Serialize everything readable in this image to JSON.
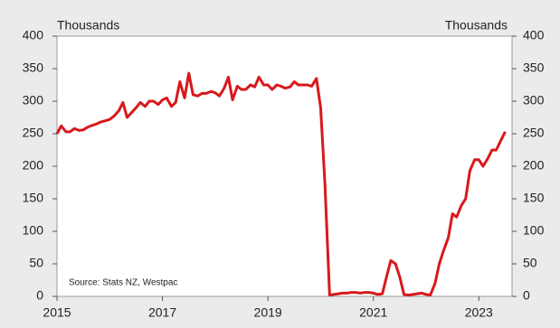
{
  "chart_data": {
    "type": "line",
    "y_label": "Thousands",
    "y2_label": "Thousands",
    "annotation": "Source: Stats NZ, Westpac",
    "color": "#d7191c",
    "x": [
      2015,
      2015.08,
      2015.17,
      2015.25,
      2015.33,
      2015.42,
      2015.5,
      2015.58,
      2015.67,
      2015.75,
      2015.83,
      2015.92,
      2016,
      2016.08,
      2016.17,
      2016.25,
      2016.33,
      2016.42,
      2016.5,
      2016.58,
      2016.67,
      2016.75,
      2016.83,
      2016.92,
      2017,
      2017.08,
      2017.17,
      2017.25,
      2017.33,
      2017.42,
      2017.5,
      2017.58,
      2017.67,
      2017.75,
      2017.83,
      2017.92,
      2018,
      2018.08,
      2018.17,
      2018.25,
      2018.33,
      2018.42,
      2018.5,
      2018.58,
      2018.67,
      2018.75,
      2018.83,
      2018.92,
      2019,
      2019.08,
      2019.17,
      2019.25,
      2019.33,
      2019.42,
      2019.5,
      2019.58,
      2019.67,
      2019.75,
      2019.83,
      2019.92,
      2020,
      2020.08,
      2020.17,
      2020.25,
      2020.33,
      2020.42,
      2020.5,
      2020.58,
      2020.67,
      2020.75,
      2020.83,
      2020.92,
      2021,
      2021.08,
      2021.17,
      2021.25,
      2021.33,
      2021.42,
      2021.5,
      2021.58,
      2021.67,
      2021.75,
      2021.83,
      2021.92,
      2022,
      2022.08,
      2022.17,
      2022.25,
      2022.33,
      2022.42,
      2022.5,
      2022.58,
      2022.67,
      2022.75,
      2022.83,
      2022.92,
      2023,
      2023.08,
      2023.17,
      2023.25,
      2023.33,
      2023.42,
      2023.5
    ],
    "values": [
      250,
      262,
      253,
      253,
      258,
      255,
      256,
      260,
      263,
      265,
      268,
      270,
      272,
      277,
      285,
      298,
      275,
      283,
      290,
      298,
      292,
      300,
      300,
      295,
      302,
      305,
      292,
      298,
      330,
      305,
      343,
      310,
      308,
      312,
      312,
      315,
      313,
      308,
      320,
      337,
      302,
      323,
      318,
      318,
      325,
      322,
      337,
      325,
      325,
      318,
      325,
      323,
      320,
      322,
      330,
      325,
      325,
      325,
      323,
      335,
      290,
      175,
      2,
      3,
      4,
      5,
      5,
      6,
      6,
      5,
      6,
      6,
      5,
      3,
      4,
      30,
      55,
      50,
      30,
      3,
      2,
      3,
      4,
      5,
      3,
      2,
      20,
      50,
      70,
      90,
      127,
      122,
      140,
      150,
      193,
      210,
      210,
      200,
      212,
      225,
      225,
      240,
      253
    ],
    "xlim": [
      2015,
      2023.63
    ],
    "xticks": [
      2015,
      2017,
      2019,
      2021,
      2023
    ],
    "ylim": [
      0,
      400
    ],
    "yticks": [
      0,
      50,
      100,
      150,
      200,
      250,
      300,
      350,
      400
    ],
    "y2lim": [
      0,
      400
    ],
    "y2ticks": [
      0,
      50,
      100,
      150,
      200,
      250,
      300,
      350,
      400
    ]
  }
}
